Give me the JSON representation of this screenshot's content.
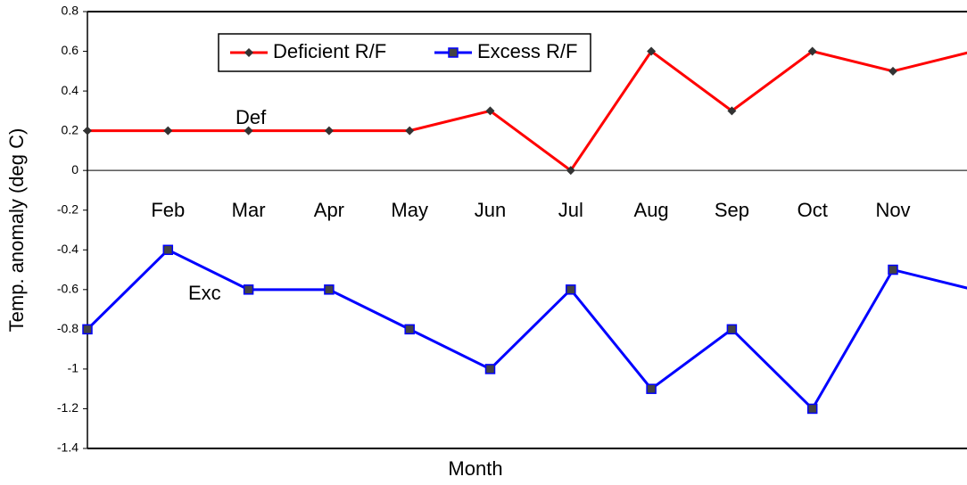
{
  "chart_data": {
    "type": "line",
    "x_label": "Month",
    "y_label": "Temp. anomaly (deg C)",
    "categories": [
      null,
      "Feb",
      "Mar",
      "Apr",
      "May",
      "Jun",
      "Jul",
      "Aug",
      "Sep",
      "Oct",
      "Nov",
      null
    ],
    "series": [
      {
        "name": "Deficient R/F",
        "color": "#ff0000",
        "marker": "diamond",
        "values": [
          0.2,
          0.2,
          0.2,
          0.2,
          0.2,
          0.3,
          0,
          0.6,
          0.3,
          0.6,
          0.5,
          0.6
        ]
      },
      {
        "name": "Excess R/F",
        "color": "#0000ff",
        "marker": "square",
        "values": [
          -0.8,
          -0.4,
          -0.6,
          -0.6,
          -0.8,
          -1,
          -0.6,
          -1.1,
          -0.8,
          -1.2,
          -0.5,
          -0.6
        ]
      }
    ],
    "annotations": [
      "Def",
      "Exc"
    ],
    "ylim": [
      -1.4,
      0.8
    ],
    "yticks": [
      -1.4,
      -1.2,
      -1,
      -0.8,
      -0.6,
      -0.4,
      -0.2,
      0,
      0.2,
      0.4,
      0.6,
      0.8
    ],
    "grid": false
  }
}
